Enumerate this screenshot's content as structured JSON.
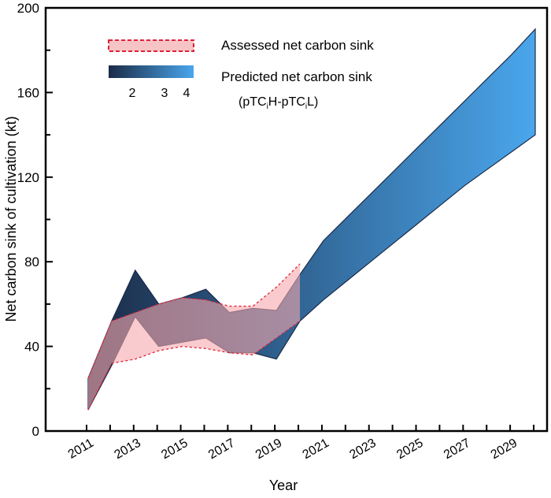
{
  "chart_data": {
    "type": "area",
    "xlabel": "Year",
    "ylabel": "Net carbon sink of cultivation (kt)",
    "ylim": [
      0,
      200
    ],
    "xlim": [
      2010.8,
      2030.5
    ],
    "yticks": [
      0,
      40,
      80,
      120,
      160,
      200
    ],
    "xtick_labels": [
      2011,
      2013,
      2015,
      2017,
      2019,
      2021,
      2023,
      2025,
      2027,
      2029
    ],
    "grid": false,
    "legend_placement": "top-left",
    "series": [
      {
        "name": "Assessed net carbon sink",
        "x": [
          2011,
          2012,
          2013,
          2014,
          2015,
          2016,
          2017,
          2018,
          2019,
          2020
        ],
        "upper": [
          25,
          52,
          56,
          60,
          63,
          62,
          59,
          59,
          68,
          79
        ],
        "lower": [
          10,
          32,
          34,
          38,
          40,
          39,
          37,
          36,
          44,
          52
        ],
        "color": "#f7a8ad",
        "edge_color": "#e0203a"
      },
      {
        "name": "Predicted net carbon sink",
        "x": [
          2011,
          2012,
          2013,
          2014,
          2015,
          2016,
          2017,
          2018,
          2019,
          2020,
          2021,
          2022,
          2023,
          2024,
          2025,
          2026,
          2027,
          2028,
          2029,
          2030
        ],
        "upper": [
          25,
          52,
          76,
          60,
          63,
          67,
          56,
          58,
          57,
          74,
          90,
          101,
          112,
          123,
          134,
          145,
          156,
          167,
          178,
          190
        ],
        "lower": [
          10,
          31,
          54,
          40,
          42,
          44,
          37,
          37,
          34,
          52,
          62,
          71,
          80,
          89,
          98,
          107,
          116,
          124,
          132,
          140
        ],
        "color_low": "#1b2b47",
        "color_high": "#4aa6ec"
      }
    ],
    "colorbar": {
      "ticks": [
        "2",
        "3",
        "4"
      ],
      "label": "(pTC",
      "label_sub1": "i",
      "label_mid": "H-pTC",
      "label_sub2": "i",
      "label_end": "L)"
    }
  }
}
